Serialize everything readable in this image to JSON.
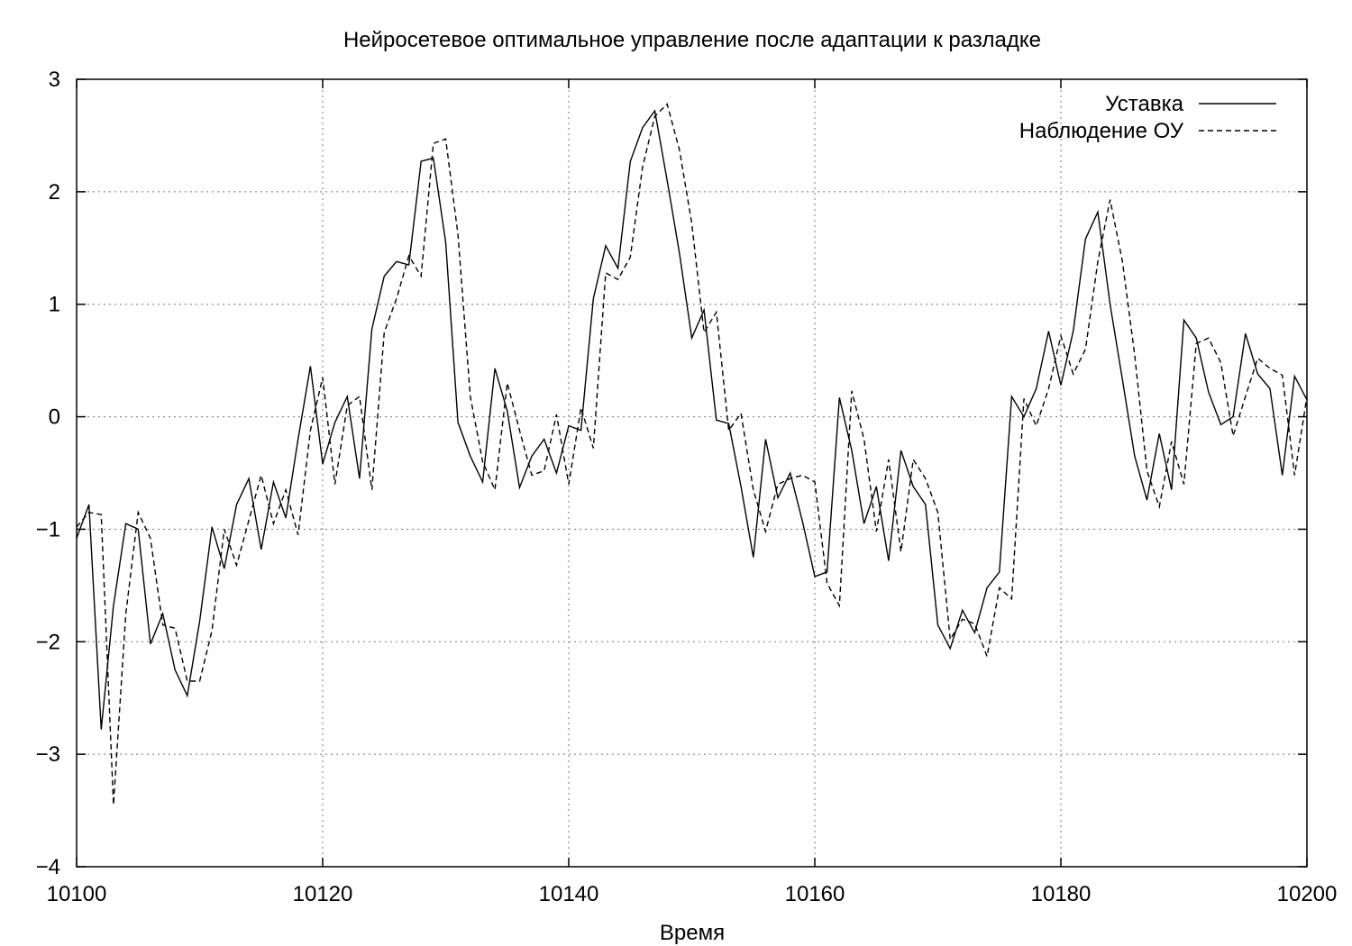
{
  "chart_data": {
    "type": "line",
    "title": "Нейросетевое оптимальное управление после адаптации к разладке",
    "xlabel": "Время",
    "ylabel": "",
    "xlim": [
      10100,
      10200
    ],
    "ylim": [
      -4,
      3
    ],
    "x_ticks": [
      10100,
      10120,
      10140,
      10160,
      10180,
      10200
    ],
    "x_tick_labels": [
      "10100",
      "10120",
      "10140",
      "10160",
      "10180",
      "10200"
    ],
    "y_ticks": [
      -4,
      -3,
      -2,
      -1,
      0,
      1,
      2,
      3
    ],
    "y_tick_labels": [
      "−4",
      "−3",
      "−2",
      "−1",
      "0",
      "1",
      "2",
      "3"
    ],
    "grid": true,
    "legend_position": "top-right",
    "series": [
      {
        "name": "Уставка",
        "style": "solid",
        "x": [
          10100,
          10101,
          10102,
          10103,
          10104,
          10105,
          10106,
          10107,
          10108,
          10109,
          10110,
          10111,
          10112,
          10113,
          10114,
          10115,
          10116,
          10117,
          10118,
          10119,
          10120,
          10121,
          10122,
          10123,
          10124,
          10125,
          10126,
          10127,
          10128,
          10129,
          10130,
          10131,
          10132,
          10133,
          10134,
          10135,
          10136,
          10137,
          10138,
          10139,
          10140,
          10141,
          10142,
          10143,
          10144,
          10145,
          10146,
          10147,
          10148,
          10149,
          10150,
          10151,
          10152,
          10153,
          10154,
          10155,
          10156,
          10157,
          10158,
          10159,
          10160,
          10161,
          10162,
          10163,
          10164,
          10165,
          10166,
          10167,
          10168,
          10169,
          10170,
          10171,
          10172,
          10173,
          10174,
          10175,
          10176,
          10177,
          10178,
          10179,
          10180,
          10181,
          10182,
          10183,
          10184,
          10185,
          10186,
          10187,
          10188,
          10189,
          10190,
          10191,
          10192,
          10193,
          10194,
          10195,
          10196,
          10197,
          10198,
          10199,
          10200
        ],
        "values": [
          -1.08,
          -0.78,
          -2.78,
          -1.68,
          -0.95,
          -1.0,
          -2.02,
          -1.75,
          -2.25,
          -2.48,
          -1.82,
          -0.98,
          -1.35,
          -0.78,
          -0.55,
          -1.18,
          -0.58,
          -0.9,
          -0.2,
          0.45,
          -0.42,
          -0.05,
          0.18,
          -0.55,
          0.78,
          1.25,
          1.38,
          1.35,
          2.27,
          2.3,
          1.55,
          -0.05,
          -0.35,
          -0.58,
          0.43,
          0.05,
          -0.63,
          -0.35,
          -0.2,
          -0.5,
          -0.08,
          -0.12,
          1.05,
          1.52,
          1.32,
          2.27,
          2.57,
          2.72,
          2.1,
          1.45,
          0.7,
          0.95,
          -0.03,
          -0.06,
          -0.62,
          -1.25,
          -0.2,
          -0.72,
          -0.5,
          -0.93,
          -1.42,
          -1.38,
          0.17,
          -0.3,
          -0.95,
          -0.62,
          -1.28,
          -0.3,
          -0.62,
          -0.78,
          -1.85,
          -2.06,
          -1.72,
          -1.92,
          -1.52,
          -1.38,
          0.18,
          0.0,
          0.25,
          0.76,
          0.28,
          0.76,
          1.58,
          1.82,
          1.0,
          0.33,
          -0.35,
          -0.74,
          -0.15,
          -0.65,
          0.86,
          0.7,
          0.22,
          -0.07,
          0.0,
          0.74,
          0.38,
          0.25,
          -0.52,
          0.36,
          0.15
        ]
      },
      {
        "name": "Наблюдение ОУ",
        "style": "dashed",
        "x": [
          10100,
          10101,
          10102,
          10103,
          10104,
          10105,
          10106,
          10107,
          10108,
          10109,
          10110,
          10111,
          10112,
          10113,
          10114,
          10115,
          10116,
          10117,
          10118,
          10119,
          10120,
          10121,
          10122,
          10123,
          10124,
          10125,
          10126,
          10127,
          10128,
          10129,
          10130,
          10131,
          10132,
          10133,
          10134,
          10135,
          10136,
          10137,
          10138,
          10139,
          10140,
          10141,
          10142,
          10143,
          10144,
          10145,
          10146,
          10147,
          10148,
          10149,
          10150,
          10151,
          10152,
          10153,
          10154,
          10155,
          10156,
          10157,
          10158,
          10159,
          10160,
          10161,
          10162,
          10163,
          10164,
          10165,
          10166,
          10167,
          10168,
          10169,
          10170,
          10171,
          10172,
          10173,
          10174,
          10175,
          10176,
          10177,
          10178,
          10179,
          10180,
          10181,
          10182,
          10183,
          10184,
          10185,
          10186,
          10187,
          10188,
          10189,
          10190,
          10191,
          10192,
          10193,
          10194,
          10195,
          10196,
          10197,
          10198,
          10199,
          10200
        ],
        "values": [
          -0.98,
          -0.85,
          -0.87,
          -3.45,
          -1.75,
          -0.85,
          -1.08,
          -1.85,
          -1.88,
          -2.35,
          -2.35,
          -1.9,
          -1.0,
          -1.32,
          -0.92,
          -0.52,
          -0.95,
          -0.65,
          -1.05,
          -0.12,
          0.35,
          -0.6,
          0.1,
          0.18,
          -0.65,
          0.75,
          1.05,
          1.43,
          1.25,
          2.43,
          2.47,
          1.62,
          0.18,
          -0.4,
          -0.65,
          0.3,
          -0.12,
          -0.52,
          -0.48,
          0.02,
          -0.6,
          0.08,
          -0.28,
          1.28,
          1.22,
          1.42,
          2.22,
          2.67,
          2.78,
          2.37,
          1.72,
          0.75,
          0.93,
          -0.12,
          0.03,
          -0.65,
          -1.02,
          -0.6,
          -0.55,
          -0.52,
          -0.58,
          -1.48,
          -1.68,
          0.23,
          -0.2,
          -1.02,
          -0.38,
          -1.2,
          -0.38,
          -0.55,
          -0.85,
          -1.98,
          -1.8,
          -1.84,
          -2.13,
          -1.52,
          -1.62,
          0.16,
          -0.08,
          0.25,
          0.72,
          0.38,
          0.6,
          1.38,
          1.93,
          1.38,
          0.55,
          -0.48,
          -0.8,
          -0.22,
          -0.6,
          0.65,
          0.7,
          0.48,
          -0.17,
          0.18,
          0.52,
          0.43,
          0.37,
          -0.52,
          0.18
        ]
      }
    ]
  }
}
